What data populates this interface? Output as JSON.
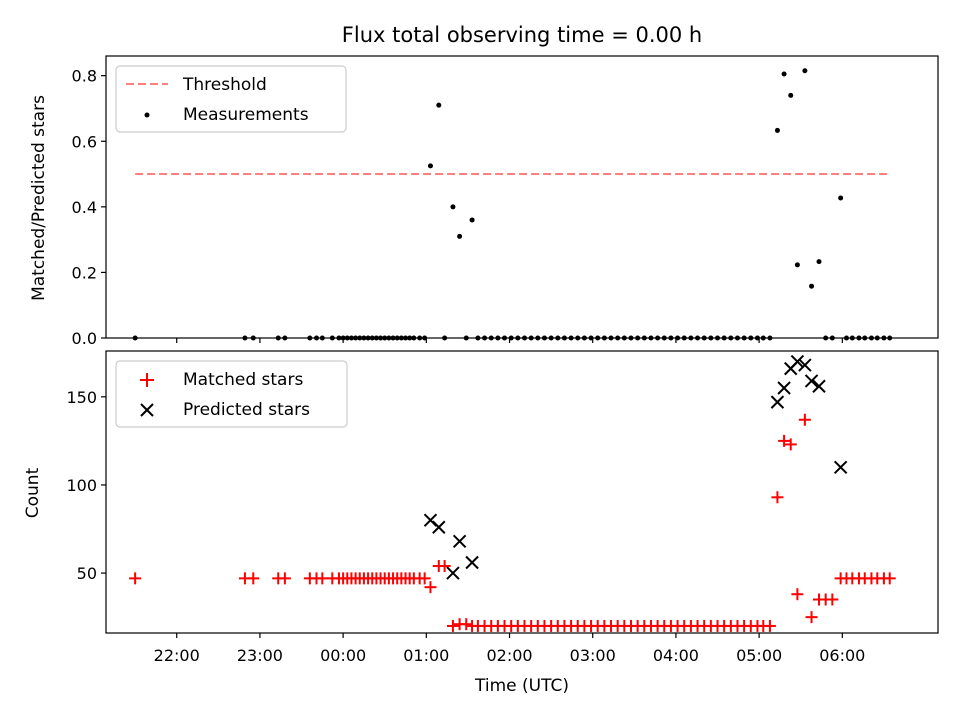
{
  "chart_data": [
    {
      "type": "scatter",
      "title": "Flux total observing time = 0.00 h",
      "xlabel": "",
      "ylabel": "Matched/Predicted stars",
      "xlim": [
        -2.85,
        7.15
      ],
      "ylim": [
        0,
        0.86
      ],
      "yticks": [
        0.0,
        0.2,
        0.4,
        0.6,
        0.8
      ],
      "ytick_labels": [
        "0.0",
        "0.2",
        "0.4",
        "0.6",
        "0.8"
      ],
      "xticks": [
        -2,
        -1,
        0,
        1,
        2,
        3,
        4,
        5,
        6
      ],
      "grid": false,
      "legend": {
        "position": "top-left",
        "entries": [
          "Threshold",
          "Measurements"
        ]
      },
      "threshold": {
        "name": "Threshold",
        "value": 0.5,
        "x_start": -2.5,
        "x_end": 6.58,
        "color": "#ff7f7f"
      },
      "series": [
        {
          "name": "Measurements",
          "marker": "dot",
          "color": "#000000",
          "x": [
            -2.5,
            -1.18,
            -1.08,
            -0.78,
            -0.7,
            -0.4,
            -0.32,
            -0.25,
            -0.13,
            -0.05,
            0.0,
            0.05,
            0.1,
            0.15,
            0.2,
            0.25,
            0.3,
            0.35,
            0.4,
            0.45,
            0.5,
            0.55,
            0.6,
            0.65,
            0.7,
            0.75,
            0.8,
            0.85,
            0.92,
            0.98,
            1.05,
            1.15,
            1.22,
            1.32,
            1.4,
            1.48,
            1.55,
            1.62,
            1.7,
            1.78,
            1.86,
            1.94,
            2.02,
            2.1,
            2.18,
            2.26,
            2.34,
            2.42,
            2.5,
            2.58,
            2.66,
            2.74,
            2.82,
            2.9,
            2.98,
            3.06,
            3.14,
            3.22,
            3.3,
            3.38,
            3.46,
            3.54,
            3.62,
            3.7,
            3.78,
            3.86,
            3.94,
            4.02,
            4.1,
            4.18,
            4.26,
            4.34,
            4.42,
            4.5,
            4.58,
            4.66,
            4.74,
            4.82,
            4.9,
            4.98,
            5.05,
            5.13,
            5.22,
            5.3,
            5.38,
            5.46,
            5.55,
            5.63,
            5.72,
            5.8,
            5.88,
            5.98,
            6.05,
            6.12,
            6.2,
            6.27,
            6.35,
            6.42,
            6.5,
            6.57
          ],
          "y": [
            0,
            0,
            0,
            0,
            0,
            0,
            0,
            0,
            0,
            0,
            0,
            0,
            0,
            0,
            0,
            0,
            0,
            0,
            0,
            0,
            0,
            0,
            0,
            0,
            0,
            0,
            0,
            0,
            0,
            0,
            0.525,
            0.71,
            0,
            0.4,
            0.31,
            0,
            0.36,
            0,
            0,
            0,
            0,
            0,
            0,
            0,
            0,
            0,
            0,
            0,
            0,
            0,
            0,
            0,
            0,
            0,
            0,
            0,
            0,
            0,
            0,
            0,
            0,
            0,
            0,
            0,
            0,
            0,
            0,
            0,
            0,
            0,
            0,
            0,
            0,
            0,
            0,
            0,
            0,
            0,
            0,
            0,
            0,
            0,
            0.633,
            0.805,
            0.74,
            0.223,
            0.815,
            0.158,
            0.233,
            0,
            0,
            0.427,
            0,
            0,
            0,
            0,
            0,
            0,
            0,
            0
          ]
        }
      ]
    },
    {
      "type": "scatter",
      "title": "",
      "xlabel": "Time (UTC)",
      "ylabel": "Count",
      "xlim": [
        -2.85,
        7.15
      ],
      "ylim": [
        16,
        176
      ],
      "yticks": [
        50,
        100,
        150
      ],
      "ytick_labels": [
        "50",
        "100",
        "150"
      ],
      "xticks": [
        -2,
        -1,
        0,
        1,
        2,
        3,
        4,
        5,
        6
      ],
      "xtick_labels": [
        "22:00",
        "23:00",
        "00:00",
        "01:00",
        "02:00",
        "03:00",
        "04:00",
        "05:00",
        "06:00"
      ],
      "grid": false,
      "legend": {
        "position": "top-left",
        "entries": [
          "Matched stars",
          "Predicted stars"
        ]
      },
      "series": [
        {
          "name": "Matched stars",
          "marker": "plus",
          "color": "#ff0000",
          "x": [
            -2.5,
            -1.18,
            -1.08,
            -0.78,
            -0.7,
            -0.4,
            -0.32,
            -0.25,
            -0.13,
            -0.05,
            0.0,
            0.05,
            0.1,
            0.15,
            0.2,
            0.25,
            0.3,
            0.35,
            0.4,
            0.45,
            0.5,
            0.55,
            0.6,
            0.65,
            0.7,
            0.75,
            0.8,
            0.85,
            0.92,
            0.98,
            1.05,
            1.15,
            1.22,
            1.32,
            1.4,
            1.48,
            1.55,
            1.62,
            1.7,
            1.78,
            1.86,
            1.94,
            2.02,
            2.1,
            2.18,
            2.26,
            2.34,
            2.42,
            2.5,
            2.58,
            2.66,
            2.74,
            2.82,
            2.9,
            2.98,
            3.06,
            3.14,
            3.22,
            3.3,
            3.38,
            3.46,
            3.54,
            3.62,
            3.7,
            3.78,
            3.86,
            3.94,
            4.02,
            4.1,
            4.18,
            4.26,
            4.34,
            4.42,
            4.5,
            4.58,
            4.66,
            4.74,
            4.82,
            4.9,
            4.98,
            5.05,
            5.13,
            5.22,
            5.3,
            5.38,
            5.46,
            5.55,
            5.63,
            5.72,
            5.8,
            5.88,
            5.98,
            6.05,
            6.12,
            6.2,
            6.27,
            6.35,
            6.42,
            6.5,
            6.57
          ],
          "y": [
            47,
            47,
            47,
            47,
            47,
            47,
            47,
            47,
            47,
            47,
            47,
            47,
            47,
            47,
            47,
            47,
            47,
            47,
            47,
            47,
            47,
            47,
            47,
            47,
            47,
            47,
            47,
            47,
            47,
            47,
            42,
            54,
            54,
            20,
            21,
            21,
            20,
            20,
            20,
            20,
            20,
            20,
            20,
            20,
            20,
            20,
            20,
            20,
            20,
            20,
            20,
            20,
            20,
            20,
            20,
            20,
            20,
            20,
            20,
            20,
            20,
            20,
            20,
            20,
            20,
            20,
            20,
            20,
            20,
            20,
            20,
            20,
            20,
            20,
            20,
            20,
            20,
            20,
            20,
            20,
            20,
            20,
            93,
            125,
            123,
            38,
            137,
            25,
            35,
            35,
            35,
            47,
            47,
            47,
            47,
            47,
            47,
            47,
            47,
            47
          ]
        },
        {
          "name": "Predicted stars",
          "marker": "x",
          "color": "#000000",
          "x": [
            1.05,
            1.15,
            1.32,
            1.4,
            1.55,
            5.22,
            5.3,
            5.38,
            5.46,
            5.55,
            5.63,
            5.72,
            5.98
          ],
          "y": [
            80,
            76,
            50,
            68,
            56,
            147,
            155,
            166,
            170,
            168,
            159,
            156,
            110
          ]
        }
      ]
    }
  ]
}
